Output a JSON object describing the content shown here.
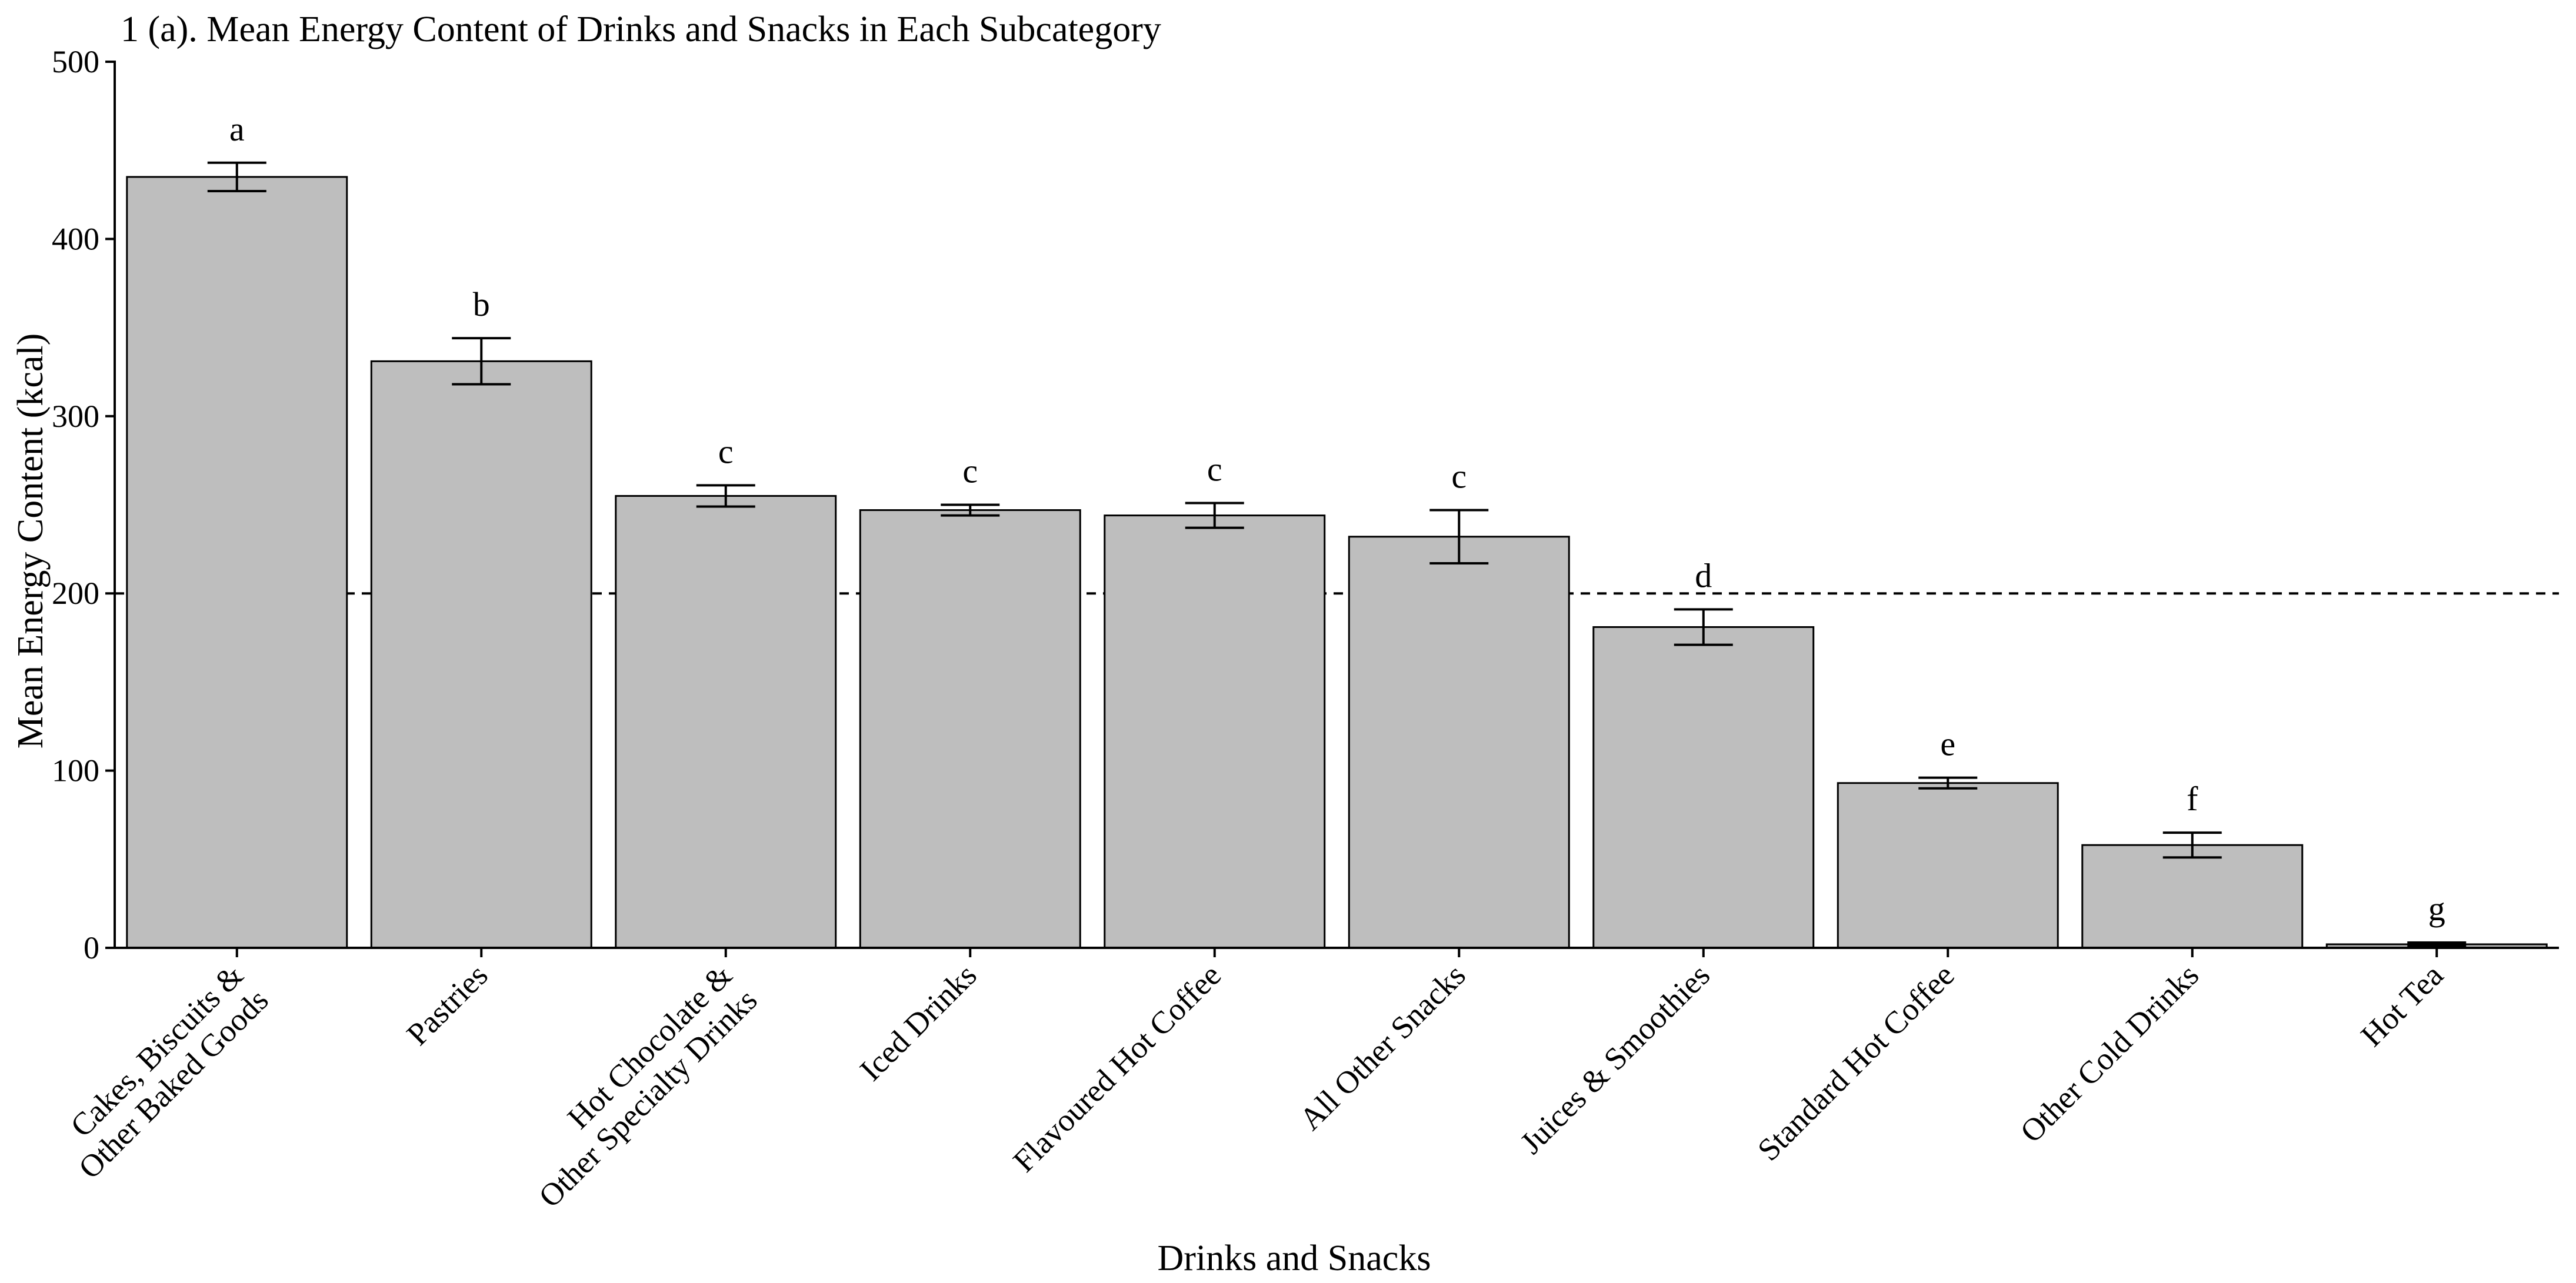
{
  "chart_data": {
    "type": "bar",
    "title": "1 (a). Mean Energy Content of Drinks and Snacks in Each Subcategory",
    "xlabel": "Drinks and Snacks",
    "ylabel": "Mean Energy Content (kcal)",
    "ylim": [
      0,
      500
    ],
    "yticks": [
      0,
      100,
      200,
      300,
      400,
      500
    ],
    "reference_line": 200,
    "grid": false,
    "categories": [
      [
        "Cakes, Biscuits &",
        "Other Baked Goods"
      ],
      [
        "Pastries"
      ],
      [
        "Hot Chocolate &",
        "Other Specialty Drinks"
      ],
      [
        "Iced Drinks"
      ],
      [
        "Flavoured Hot Coffee"
      ],
      [
        "All Other Snacks"
      ],
      [
        "Juices & Smoothies"
      ],
      [
        "Standard Hot Coffee"
      ],
      [
        "Other Cold Drinks"
      ],
      [
        "Hot Tea"
      ]
    ],
    "values": [
      435,
      331,
      255,
      247,
      244,
      232,
      181,
      93,
      58,
      2
    ],
    "error": [
      8,
      13,
      6,
      3,
      7,
      15,
      10,
      3,
      7,
      1
    ],
    "significance": [
      "a",
      "b",
      "c",
      "c",
      "c",
      "c",
      "d",
      "e",
      "f",
      "g"
    ],
    "colors": {
      "bar_fill": "#bebebe",
      "bar_stroke": "#000000"
    }
  }
}
